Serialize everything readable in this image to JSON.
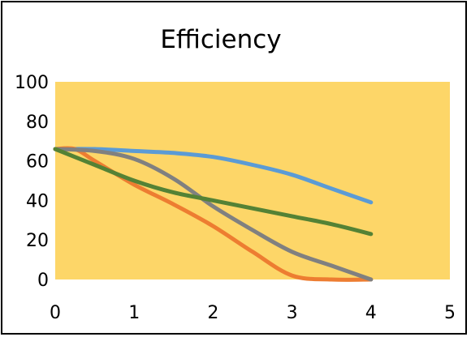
{
  "chart_data": {
    "type": "line",
    "title": "Efficiency",
    "xlabel": "",
    "ylabel": "",
    "xlim": [
      0,
      5
    ],
    "ylim": [
      0,
      100
    ],
    "x_ticks": [
      "0",
      "1",
      "2",
      "3",
      "4",
      "5"
    ],
    "y_ticks": [
      "100",
      "80",
      "60",
      "40",
      "20",
      "0"
    ],
    "grid": false,
    "legend": "none",
    "plot_background": "#FDD668",
    "series": [
      {
        "color": "#5B9BD5",
        "points": [
          [
            0,
            66
          ],
          [
            0.5,
            66
          ],
          [
            1,
            65
          ],
          [
            1.5,
            64
          ],
          [
            2,
            62
          ],
          [
            2.5,
            58
          ],
          [
            3,
            53
          ],
          [
            3.5,
            46
          ],
          [
            4,
            39
          ]
        ]
      },
      {
        "color": "#ED7D31",
        "points": [
          [
            0,
            66
          ],
          [
            0.25,
            66
          ],
          [
            0.5,
            60
          ],
          [
            1,
            48
          ],
          [
            1.5,
            38
          ],
          [
            2,
            27
          ],
          [
            2.5,
            14
          ],
          [
            3,
            2
          ],
          [
            3.5,
            0
          ],
          [
            4,
            0
          ]
        ]
      },
      {
        "color": "#808080",
        "points": [
          [
            0,
            66
          ],
          [
            0.5,
            65
          ],
          [
            1,
            61
          ],
          [
            1.5,
            51
          ],
          [
            2,
            37
          ],
          [
            2.5,
            25
          ],
          [
            3,
            14
          ],
          [
            3.5,
            7
          ],
          [
            4,
            0
          ]
        ]
      },
      {
        "color": "#548235",
        "points": [
          [
            0,
            66
          ],
          [
            0.5,
            58
          ],
          [
            1,
            50
          ],
          [
            1.5,
            44
          ],
          [
            2,
            40
          ],
          [
            2.5,
            36
          ],
          [
            3,
            32
          ],
          [
            3.5,
            28
          ],
          [
            4,
            23
          ]
        ]
      }
    ]
  }
}
